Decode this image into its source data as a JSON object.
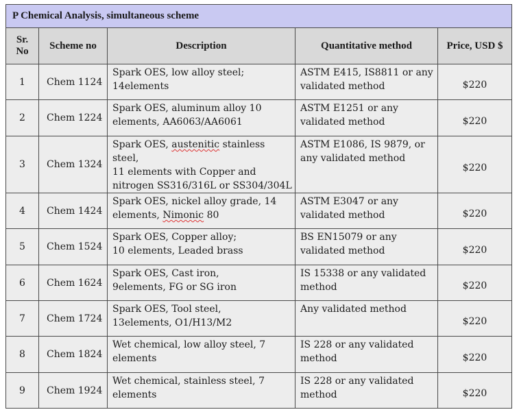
{
  "table": {
    "title": "P  Chemical Analysis, simultaneous  scheme",
    "headers": {
      "sr_no": "Sr. No",
      "scheme_no": "Scheme no",
      "description": "Description",
      "method": "Quantitative method",
      "price": "Price, USD $"
    },
    "rows": [
      {
        "sr": "1",
        "scheme": "Chem 1124",
        "desc_lines": [
          "Spark OES, low alloy steel;",
          "14elements"
        ],
        "method_lines": [
          "ASTM E415, IS8811 or any",
          "validated method"
        ],
        "price": "$220"
      },
      {
        "sr": "2",
        "scheme": "Chem 1224",
        "desc_lines": [
          "Spark OES, aluminum alloy  10",
          "elements, AA6063/AA6061"
        ],
        "method_lines": [
          "ASTM E1251 or any",
          "validated method"
        ],
        "price": "$220"
      },
      {
        "sr": "3",
        "scheme": "Chem 1324",
        "desc_lines": [
          "Spark OES, austenitic stainless steel,",
          "11 elements  with Copper and",
          "nitrogen SS316/316L or SS304/304L"
        ],
        "method_lines": [
          "ASTM E1086, IS 9879, or",
          "any validated method"
        ],
        "price": "$220"
      },
      {
        "sr": "4",
        "scheme": "Chem 1424",
        "desc_lines": [
          "Spark OES, nickel alloy grade, 14",
          "elements, Nimonic 80"
        ],
        "method_lines": [
          "ASTM E3047 or any",
          "validated method"
        ],
        "price": "$220"
      },
      {
        "sr": "5",
        "scheme": "Chem 1524",
        "desc_lines": [
          "Spark OES, Copper alloy;",
          "10 elements, Leaded brass"
        ],
        "method_lines": [
          "BS EN15079 or any",
          "validated method"
        ],
        "price": "$220"
      },
      {
        "sr": "6",
        "scheme": "Chem 1624",
        "desc_lines": [
          "Spark OES, Cast iron,",
          "9elements, FG or SG iron"
        ],
        "method_lines": [
          "IS 15338 or any validated",
          "method"
        ],
        "price": "$220"
      },
      {
        "sr": "7",
        "scheme": "Chem 1724",
        "desc_lines": [
          "Spark OES, Tool steel,",
          "13elements, O1/H13/M2"
        ],
        "method_lines": [
          "Any validated method"
        ],
        "price": "$220"
      },
      {
        "sr": "8",
        "scheme": "Chem 1824",
        "desc_lines": [
          "Wet chemical, low alloy steel, 7",
          "elements"
        ],
        "method_lines": [
          "IS 228 or any validated",
          "method"
        ],
        "price": "$220"
      },
      {
        "sr": "9",
        "scheme": "Chem 1924",
        "desc_lines": [
          "Wet chemical, stainless steel, 7",
          "elements"
        ],
        "method_lines": [
          "IS 228 or any validated",
          "method"
        ],
        "price": "$220"
      }
    ]
  }
}
